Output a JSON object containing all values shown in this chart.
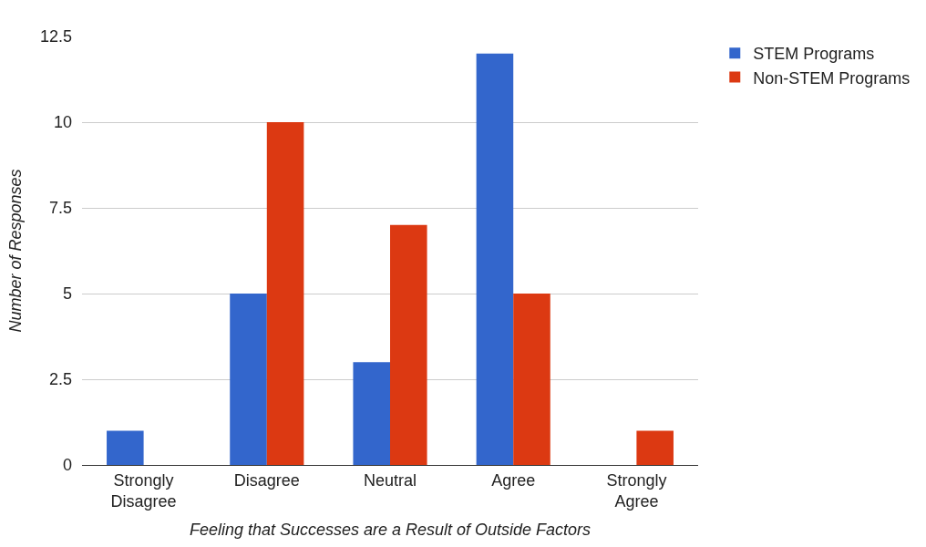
{
  "chart_data": {
    "type": "bar",
    "xlabel": "Feeling that Successes are a Result of Outside Factors",
    "ylabel": "Number of Responses",
    "categories": [
      "Strongly Disagree",
      "Disagree",
      "Neutral",
      "Agree",
      "Strongly Agree"
    ],
    "series": [
      {
        "name": "STEM Programs",
        "color": "#3366cc",
        "values": [
          1,
          5,
          3,
          12,
          0
        ]
      },
      {
        "name": "Non-STEM Programs",
        "color": "#dc3912",
        "values": [
          0,
          10,
          7,
          5,
          1
        ]
      }
    ],
    "ylim": [
      0,
      12.5
    ],
    "yticks": [
      0,
      2.5,
      5,
      7.5,
      10,
      12.5
    ],
    "grid": "y",
    "legend": "top right"
  }
}
